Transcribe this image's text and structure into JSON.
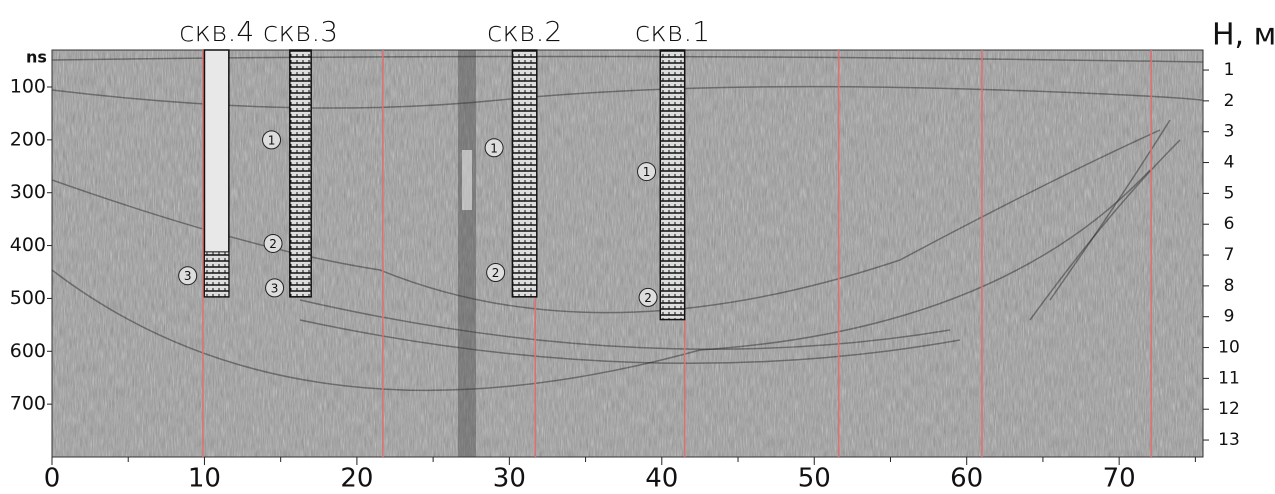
{
  "chart_data": {
    "type": "radargram",
    "y_label": "ns",
    "y2_label": "H, м",
    "xlim": [
      0,
      75.5
    ],
    "xticks": [
      0,
      10,
      20,
      30,
      40,
      50,
      60,
      70
    ],
    "xminor_ticks": [
      5,
      15,
      25,
      35,
      45,
      55,
      65,
      75
    ],
    "ylim": [
      30,
      800
    ],
    "yticks": [
      100,
      200,
      300,
      400,
      500,
      600,
      700
    ],
    "y2lim": [
      0.35,
      13.55
    ],
    "y2ticks": [
      1,
      2,
      3,
      4,
      5,
      6,
      7,
      8,
      9,
      10,
      11,
      12,
      13
    ],
    "marker_lines": {
      "color": "#e07070",
      "x": [
        9.9,
        21.7,
        31.7,
        41.5,
        51.6,
        61.0,
        72.1
      ]
    },
    "boreholes": [
      {
        "name": "скв.4",
        "x": [
          10.0,
          11.6
        ],
        "bottom": 497,
        "layers": [
          {
            "label": "3",
            "x": 8.9,
            "y": 457
          }
        ]
      },
      {
        "name": "скв.3",
        "x": [
          15.6,
          17.0
        ],
        "bottom": 497,
        "layers": [
          {
            "label": "1",
            "x": 14.4,
            "y": 200
          },
          {
            "label": "2",
            "x": 14.5,
            "y": 396
          },
          {
            "label": "3",
            "x": 14.6,
            "y": 480
          }
        ]
      },
      {
        "name": "скв.2",
        "x": [
          30.2,
          31.8
        ],
        "bottom": 497,
        "layers": [
          {
            "label": "1",
            "x": 29.0,
            "y": 215
          },
          {
            "label": "2",
            "x": 29.1,
            "y": 451
          }
        ]
      },
      {
        "name": "скв.1",
        "x": [
          39.9,
          41.5
        ],
        "bottom": 540,
        "layers": [
          {
            "label": "1",
            "x": 39.0,
            "y": 260
          },
          {
            "label": "2",
            "x": 39.1,
            "y": 498
          }
        ]
      }
    ]
  }
}
